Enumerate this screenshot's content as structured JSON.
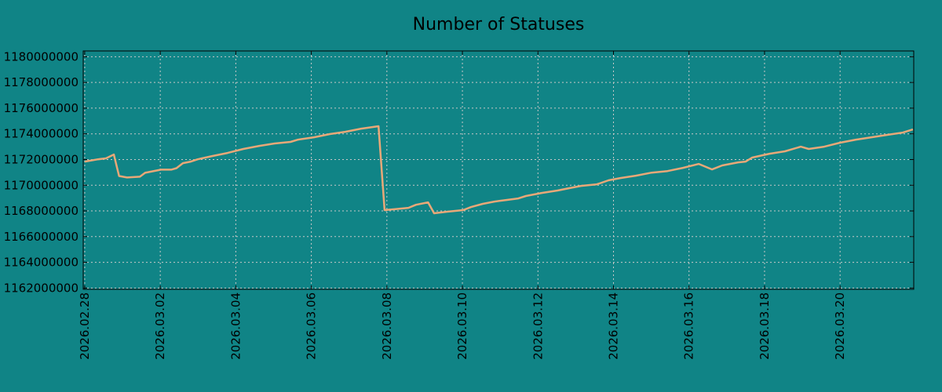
{
  "chart_data": {
    "type": "line",
    "title": "Number of Statuses",
    "xlabel": "",
    "ylabel": "",
    "x_unit": "days since 2026.02.28",
    "xlim": [
      -0.04,
      21.95
    ],
    "ylim": [
      1161900000,
      1180450000
    ],
    "grid": true,
    "colors": {
      "background": "#108486",
      "line": "#e8a878",
      "grid": "#c8c8c8",
      "axis": "#000000"
    },
    "x_ticks": [
      {
        "value": 0,
        "label": "2026.02.28"
      },
      {
        "value": 2,
        "label": "2026.03.02"
      },
      {
        "value": 4,
        "label": "2026.03.04"
      },
      {
        "value": 6,
        "label": "2026.03.06"
      },
      {
        "value": 8,
        "label": "2026.03.08"
      },
      {
        "value": 10,
        "label": "2026.03.10"
      },
      {
        "value": 12,
        "label": "2026.03.12"
      },
      {
        "value": 14,
        "label": "2026.03.14"
      },
      {
        "value": 16,
        "label": "2026.03.16"
      },
      {
        "value": 18,
        "label": "2026.03.18"
      },
      {
        "value": 20,
        "label": "2026.03.20"
      }
    ],
    "y_ticks": [
      {
        "value": 1162000000,
        "label": "1162000000"
      },
      {
        "value": 1164000000,
        "label": "1164000000"
      },
      {
        "value": 1166000000,
        "label": "1166000000"
      },
      {
        "value": 1168000000,
        "label": "1168000000"
      },
      {
        "value": 1170000000,
        "label": "1170000000"
      },
      {
        "value": 1172000000,
        "label": "1172000000"
      },
      {
        "value": 1174000000,
        "label": "1174000000"
      },
      {
        "value": 1176000000,
        "label": "1176000000"
      },
      {
        "value": 1178000000,
        "label": "1178000000"
      },
      {
        "value": 1180000000,
        "label": "1180000000"
      }
    ],
    "series": [
      {
        "name": "Number of Statuses",
        "x": [
          0,
          0.35,
          0.56,
          0.77,
          0.91,
          1.12,
          1.46,
          1.6,
          1.81,
          2.02,
          2.29,
          2.43,
          2.6,
          2.81,
          2.99,
          3.37,
          3.78,
          4.2,
          4.62,
          5.03,
          5.45,
          5.65,
          6.07,
          6.49,
          6.9,
          7.32,
          7.78,
          7.94,
          8.36,
          8.57,
          8.77,
          9.09,
          9.25,
          9.6,
          10.02,
          10.23,
          10.54,
          10.85,
          11.16,
          11.48,
          11.68,
          12.1,
          12.52,
          12.83,
          13.14,
          13.56,
          13.87,
          14.18,
          14.59,
          15.01,
          15.43,
          15.84,
          16.26,
          16.61,
          16.88,
          17.3,
          17.5,
          17.67,
          18.13,
          18.54,
          18.96,
          19.17,
          19.58,
          20.0,
          20.42,
          20.83,
          21.25,
          21.66,
          21.93
        ],
        "y": [
          1171840000,
          1172020000,
          1172090000,
          1172390000,
          1170720000,
          1170600000,
          1170660000,
          1170970000,
          1171090000,
          1171210000,
          1171210000,
          1171330000,
          1171720000,
          1171840000,
          1172020000,
          1172270000,
          1172510000,
          1172820000,
          1173060000,
          1173250000,
          1173370000,
          1173550000,
          1173730000,
          1173980000,
          1174160000,
          1174400000,
          1174590000,
          1168060000,
          1168180000,
          1168240000,
          1168480000,
          1168670000,
          1167820000,
          1167940000,
          1168060000,
          1168300000,
          1168550000,
          1168730000,
          1168850000,
          1168970000,
          1169160000,
          1169400000,
          1169590000,
          1169770000,
          1169950000,
          1170070000,
          1170380000,
          1170560000,
          1170740000,
          1170980000,
          1171100000,
          1171350000,
          1171660000,
          1171230000,
          1171540000,
          1171780000,
          1171840000,
          1172150000,
          1172450000,
          1172640000,
          1173000000,
          1172820000,
          1173000000,
          1173310000,
          1173550000,
          1173730000,
          1173920000,
          1174100000,
          1174340000
        ]
      }
    ]
  }
}
